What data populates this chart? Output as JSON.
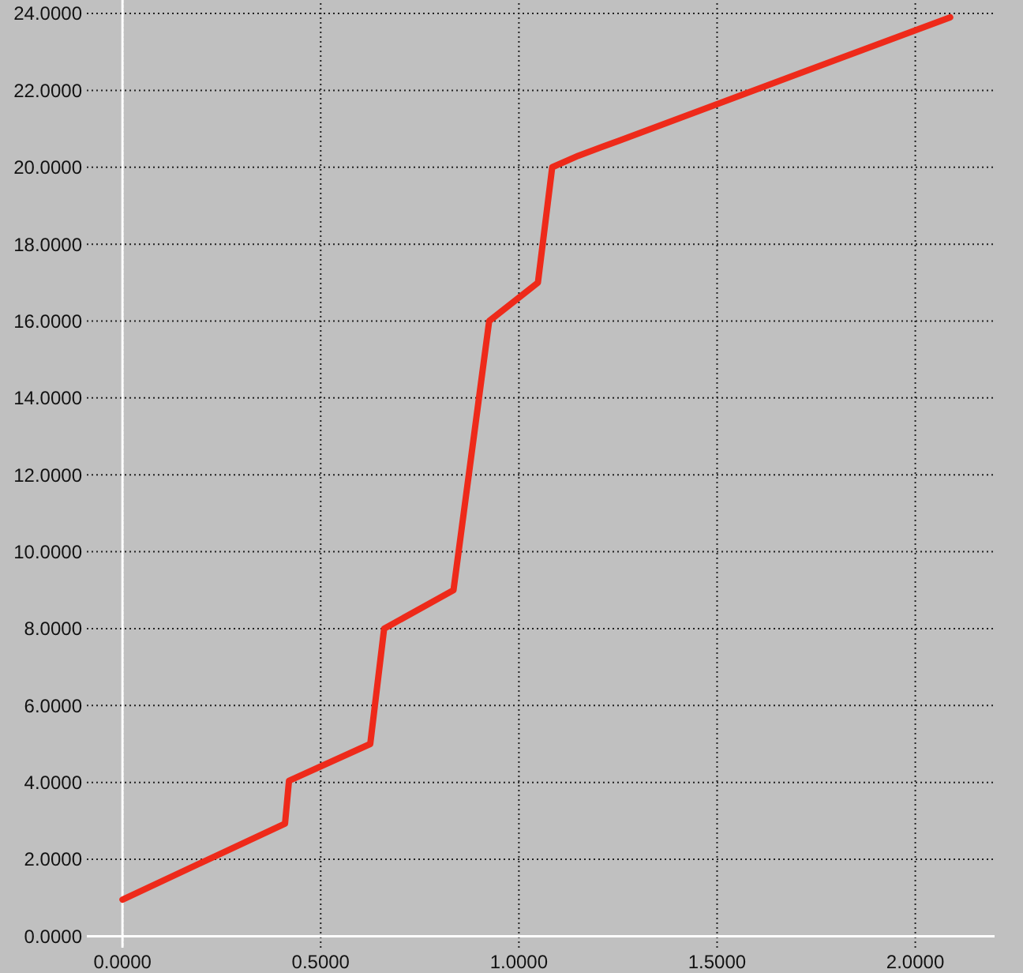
{
  "chart_data": {
    "type": "line",
    "x": [
      0,
      0.41,
      0.42,
      0.625,
      0.66,
      0.835,
      0.925,
      1.048,
      1.084,
      1.15,
      1.255,
      2.088
    ],
    "series": [
      {
        "color": "#ee2a1a",
        "values": [
          0.95,
          2.93,
          4.04,
          5,
          8,
          9,
          16,
          17,
          20,
          20.3,
          20.7,
          23.9
        ]
      }
    ],
    "xlim": [
      -0.09,
      2.2
    ],
    "ylim": [
      -0.3,
      24.35
    ],
    "xticks": [
      {
        "value": 0,
        "label": "0.0000"
      },
      {
        "value": 0.5,
        "label": "0.5000"
      },
      {
        "value": 1,
        "label": "1.0000"
      },
      {
        "value": 1.5,
        "label": "1.5000"
      },
      {
        "value": 2,
        "label": "2.0000"
      }
    ],
    "yticks": [
      {
        "value": 0,
        "label": "0.0000"
      },
      {
        "value": 2,
        "label": "2.0000"
      },
      {
        "value": 4,
        "label": "4.0000"
      },
      {
        "value": 6,
        "label": "6.0000"
      },
      {
        "value": 8,
        "label": "8.0000"
      },
      {
        "value": 10,
        "label": "10.0000"
      },
      {
        "value": 12,
        "label": "12.0000"
      },
      {
        "value": 14,
        "label": "14.0000"
      },
      {
        "value": 16,
        "label": "16.0000"
      },
      {
        "value": 18,
        "label": "18.0000"
      },
      {
        "value": 20,
        "label": "20.0000"
      },
      {
        "value": 22,
        "label": "22.0000"
      },
      {
        "value": 24,
        "label": "24.0000"
      }
    ],
    "grid": true,
    "marker": "none",
    "line_style": "solid"
  }
}
